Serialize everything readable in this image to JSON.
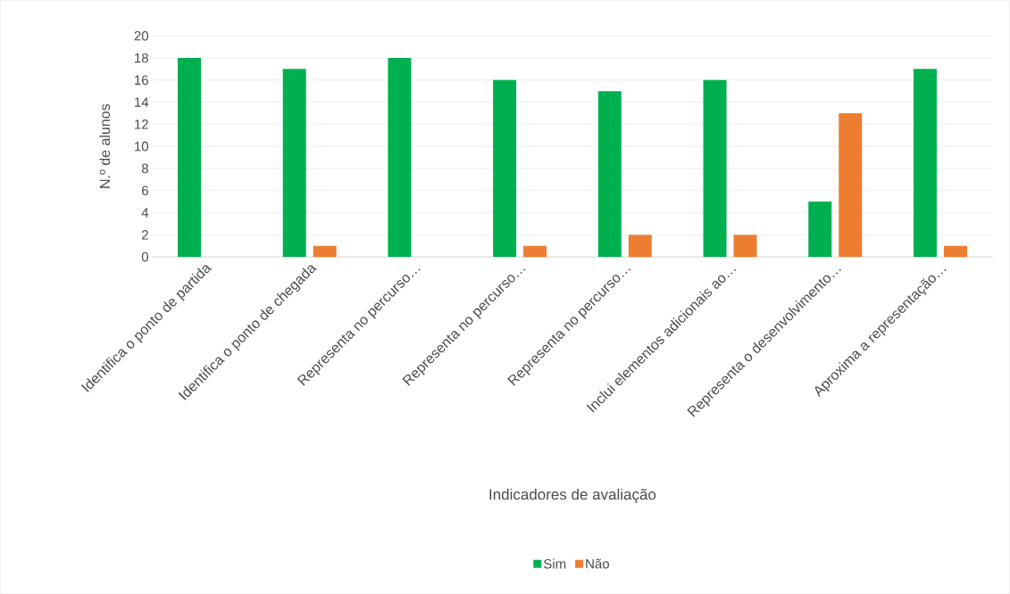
{
  "chart_data": {
    "type": "bar",
    "xlabel": "Indicadores de avaliação",
    "ylabel": "N.º de alunos",
    "categories": [
      "Identifica o ponto de partida",
      "Identifica o ponto de chegada",
      "Representa no percurso…",
      "Representa no percurso…",
      "Representa no percurso…",
      "Inclui elementos adicionais ao…",
      "Representa o desenvolvimento…",
      "Aproxima a representação…"
    ],
    "series": [
      {
        "name": "Sim",
        "color": "#00b050",
        "values": [
          18,
          17,
          18,
          16,
          15,
          16,
          5,
          17
        ]
      },
      {
        "name": "Não",
        "color": "#ed7d31",
        "values": [
          0,
          1,
          0,
          1,
          2,
          2,
          13,
          1
        ]
      }
    ],
    "ylim": [
      0,
      20
    ],
    "yticks": [
      0,
      2,
      4,
      6,
      8,
      10,
      12,
      14,
      16,
      18,
      20
    ],
    "grid": "y",
    "legend": "bottom"
  }
}
